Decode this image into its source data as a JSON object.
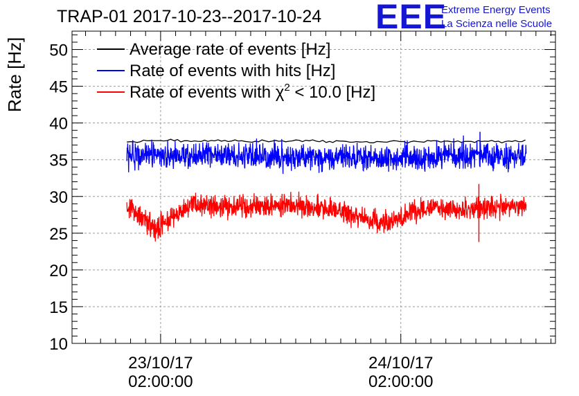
{
  "chart_data": {
    "type": "line",
    "title": "TRAP-01 2017-10-23--2017-10-24",
    "ylabel": "Rate [Hz]",
    "xlabel": "",
    "ylim": [
      10,
      52.5
    ],
    "y_ticks": [
      "10",
      "15",
      "20",
      "25",
      "30",
      "35",
      "40",
      "45",
      "50"
    ],
    "y_tick_values": [
      10,
      15,
      20,
      25,
      30,
      35,
      40,
      45,
      50
    ],
    "xlim_hours": [
      -9.8,
      54.6
    ],
    "x_tick_hours": [
      2,
      34
    ],
    "x_ticks": [
      {
        "date": "23/10/17",
        "time": "02:00:00"
      },
      {
        "date": "24/10/17",
        "time": "02:00:00"
      }
    ],
    "grid": true,
    "legend_position": "top-left",
    "series": [
      {
        "name": "Average rate of events [Hz]",
        "color": "#000000",
        "x_hours": [
          -2.5,
          6,
          14,
          22,
          30,
          38,
          46,
          50.7
        ],
        "values": [
          37.5,
          37.6,
          37.5,
          37.6,
          37.4,
          37.5,
          37.5,
          37.5
        ]
      },
      {
        "name": "Rate of events with hits [Hz]",
        "color": "#0000ff",
        "x_hours": [
          -2.5,
          6,
          14,
          22,
          30,
          38,
          44.5,
          46,
          50.7
        ],
        "values": [
          35.5,
          35.6,
          35.5,
          35.4,
          35.3,
          35.3,
          36,
          35.2,
          35.4
        ]
      },
      {
        "name": "Rate of events with χ² < 10.0 [Hz]",
        "color": "#ff0000",
        "x_hours": [
          -2.5,
          1.4,
          6,
          14,
          22,
          31.6,
          38,
          44.7,
          46,
          50.7
        ],
        "values": [
          28.8,
          25.5,
          28.9,
          28.8,
          28.7,
          26.5,
          28.6,
          28.2,
          28.7,
          28.6
        ]
      }
    ],
    "legend_labels": {
      "avg": "Average rate of events [Hz]",
      "hits": "Rate of events with hits [Hz]",
      "chi_prefix": "Rate of events with ",
      "chi_symbol": "χ",
      "chi_sup": "2",
      "chi_suffix": " < 10.0 [Hz]"
    }
  },
  "logo": {
    "text": "EEE",
    "line1": "Extreme Energy Events",
    "line2": "La Scienza nelle Scuole",
    "color": "#1515d4"
  }
}
